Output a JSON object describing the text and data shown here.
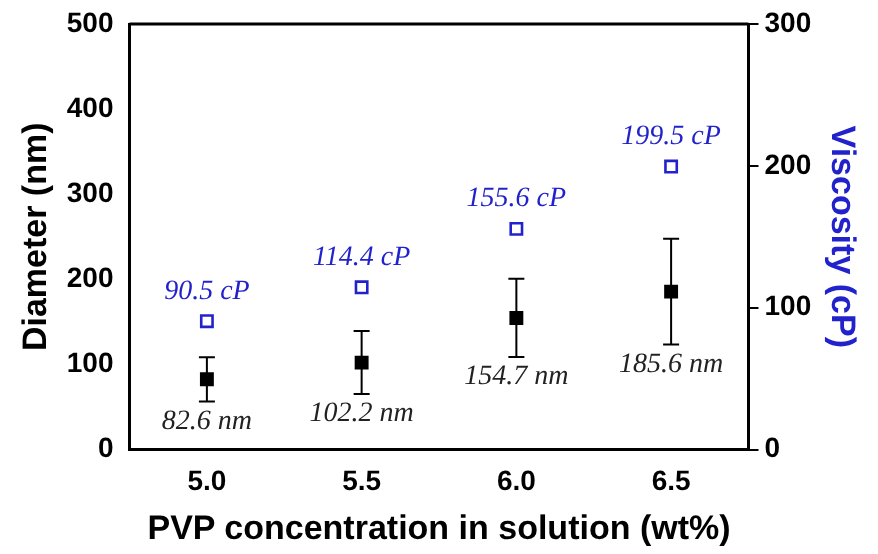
{
  "chart_data": {
    "type": "scatter",
    "xlabel": "PVP concentration in solution (wt%)",
    "ylabel": "Diameter (nm)",
    "y2label": "Viscosity (cP)",
    "xlim": [
      4.75,
      6.75
    ],
    "xticks": [
      {
        "value": 5,
        "label": "5.0"
      },
      5.5,
      {
        "value": 6,
        "label": "6.0"
      },
      6.5
    ],
    "ylim": [
      0,
      500
    ],
    "yticks": [
      0,
      100,
      200,
      300,
      400,
      500
    ],
    "y2lim": [
      0,
      300
    ],
    "y2ticks": [
      0,
      100,
      200,
      300
    ],
    "x": [
      5,
      5.5,
      6,
      6.5
    ],
    "marker": "square",
    "grid": false,
    "legend": false,
    "series": [
      {
        "color": "#000000",
        "values": [
          82.6,
          102.2,
          154.7,
          185.6
        ],
        "errors": [
          26,
          37,
          46,
          62
        ],
        "value_labels": [
          "82.6 nm",
          "102.2 nm",
          "154.7 nm",
          "185.6 nm"
        ]
      },
      {
        "color": "#2222cc",
        "axis": "y2",
        "values": [
          90.5,
          114.4,
          155.6,
          199.5
        ],
        "value_labels": [
          "90.5 cP",
          "114.4 cP",
          "155.6 cP",
          "199.5 cP"
        ]
      }
    ]
  }
}
